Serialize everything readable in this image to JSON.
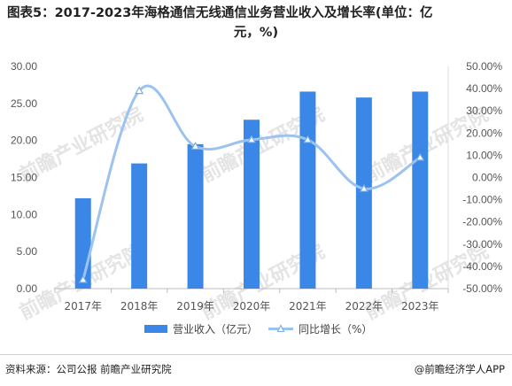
{
  "title_line1": "图表5：2017-2023年海格通信无线通信业务营业收入及增长率(单位：亿",
  "title_line2": "元，%)",
  "chart_data": {
    "type": "bar",
    "categories": [
      "2017年",
      "2018年",
      "2019年",
      "2020年",
      "2021年",
      "2022年",
      "2023年"
    ],
    "series": [
      {
        "name": "营业收入（亿元）",
        "type": "bar",
        "axis": "left",
        "color": "#3a87e8",
        "values": [
          12.2,
          16.9,
          19.5,
          22.8,
          26.6,
          25.8,
          26.6
        ]
      },
      {
        "name": "同比增长（%）",
        "type": "line",
        "axis": "right",
        "color": "#9cc3f0",
        "values": [
          -46,
          39,
          14,
          17,
          17,
          -5,
          9
        ]
      }
    ],
    "ylim_left": [
      0,
      30
    ],
    "ylim_right": [
      -50,
      50
    ],
    "yticks_left": [
      "0.00",
      "5.00",
      "10.00",
      "15.00",
      "20.00",
      "25.00",
      "30.00"
    ],
    "yticks_right": [
      "-50.00%",
      "-40.00%",
      "-30.00%",
      "-20.00%",
      "-10.00%",
      "0.00%",
      "10.00%",
      "20.00%",
      "30.00%",
      "40.00%",
      "50.00%"
    ],
    "legend_position": "bottom",
    "watermark": "前瞻产业研究院"
  },
  "footer": {
    "source": "资料来源：公司公报 前瞻产业研究院",
    "brand": "@前瞻经济学人APP"
  }
}
